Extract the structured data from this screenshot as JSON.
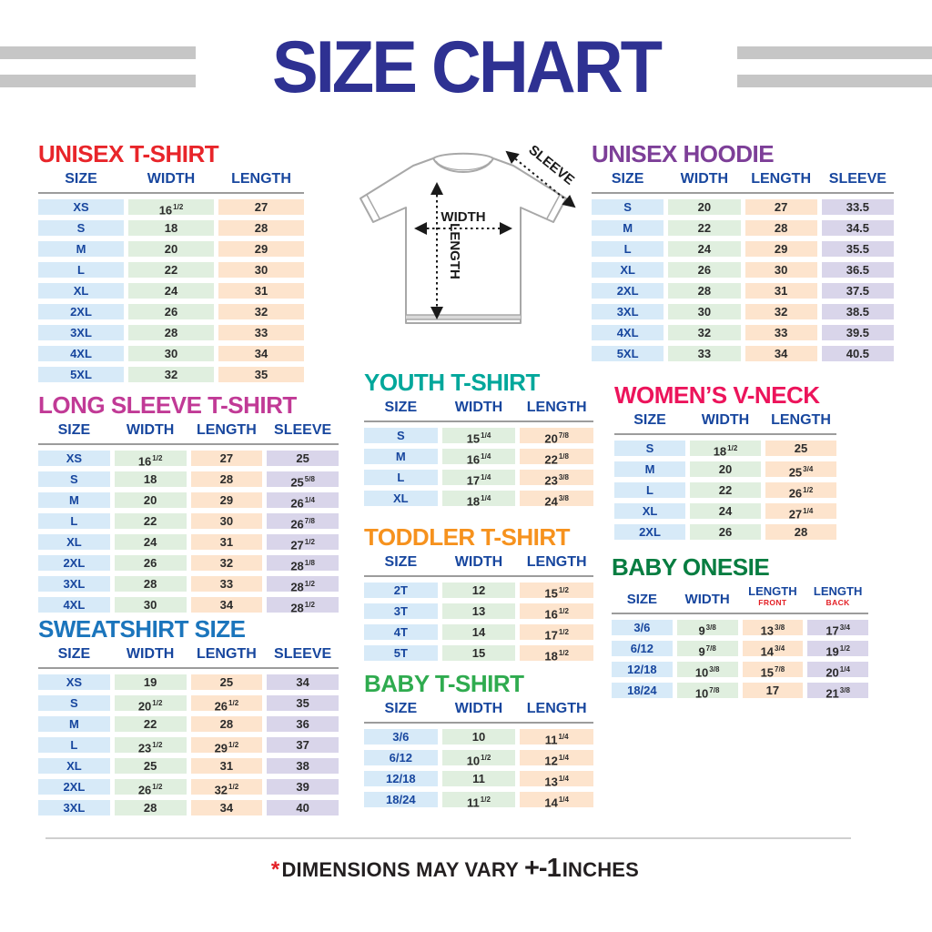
{
  "page": {
    "title": "SIZE CHART",
    "footer": {
      "asterisk": "*",
      "text": "DIMENSIONS MAY VARY",
      "tolerance": "+-1",
      "unit": "INCHES"
    }
  },
  "diagram": {
    "width_label": "WIDTH",
    "length_label": "LENGTH",
    "sleeve_label": "SLEEVE"
  },
  "colors": {
    "page_title": "#2e3192",
    "header_text": "#17469e",
    "size_tint": "#d7eaf8",
    "width_tint": "#e0efdf",
    "length_tint": "#fde4cd",
    "sleeve_tint": "#d9d5ea",
    "sub_header_red": "#e31e24"
  },
  "tables": {
    "unisex_tshirt": {
      "title": "UNISEX T-SHIRT",
      "title_color": "#e8252a",
      "columns": [
        {
          "label": "SIZE"
        },
        {
          "label": "WIDTH"
        },
        {
          "label": "LENGTH"
        }
      ],
      "tints": [
        "blue",
        "green",
        "peach"
      ],
      "rows": [
        [
          "XS",
          "16 1/2",
          "27"
        ],
        [
          "S",
          "18",
          "28"
        ],
        [
          "M",
          "20",
          "29"
        ],
        [
          "L",
          "22",
          "30"
        ],
        [
          "XL",
          "24",
          "31"
        ],
        [
          "2XL",
          "26",
          "32"
        ],
        [
          "3XL",
          "28",
          "33"
        ],
        [
          "4XL",
          "30",
          "34"
        ],
        [
          "5XL",
          "32",
          "35"
        ]
      ]
    },
    "unisex_hoodie": {
      "title": "UNISEX HOODIE",
      "title_color": "#7d3f98",
      "columns": [
        {
          "label": "SIZE"
        },
        {
          "label": "WIDTH"
        },
        {
          "label": "LENGTH"
        },
        {
          "label": "SLEEVE"
        }
      ],
      "tints": [
        "blue",
        "green",
        "peach",
        "lav"
      ],
      "rows": [
        [
          "S",
          "20",
          "27",
          "33.5"
        ],
        [
          "M",
          "22",
          "28",
          "34.5"
        ],
        [
          "L",
          "24",
          "29",
          "35.5"
        ],
        [
          "XL",
          "26",
          "30",
          "36.5"
        ],
        [
          "2XL",
          "28",
          "31",
          "37.5"
        ],
        [
          "3XL",
          "30",
          "32",
          "38.5"
        ],
        [
          "4XL",
          "32",
          "33",
          "39.5"
        ],
        [
          "5XL",
          "33",
          "34",
          "40.5"
        ]
      ]
    },
    "long_sleeve": {
      "title": "LONG SLEEVE T-SHIRT",
      "title_color": "#c13a96",
      "columns": [
        {
          "label": "SIZE"
        },
        {
          "label": "WIDTH"
        },
        {
          "label": "LENGTH"
        },
        {
          "label": "SLEEVE"
        }
      ],
      "tints": [
        "blue",
        "green",
        "peach",
        "lav"
      ],
      "rows": [
        [
          "XS",
          "16 1/2",
          "27",
          "25"
        ],
        [
          "S",
          "18",
          "28",
          "25 5/8"
        ],
        [
          "M",
          "20",
          "29",
          "26 1/4"
        ],
        [
          "L",
          "22",
          "30",
          "26 7/8"
        ],
        [
          "XL",
          "24",
          "31",
          "27 1/2"
        ],
        [
          "2XL",
          "26",
          "32",
          "28 1/8"
        ],
        [
          "3XL",
          "28",
          "33",
          "28 1/2"
        ],
        [
          "4XL",
          "30",
          "34",
          "28 1/2"
        ]
      ]
    },
    "youth": {
      "title": "YOUTH T-SHIRT",
      "title_color": "#00a79b",
      "columns": [
        {
          "label": "SIZE"
        },
        {
          "label": "WIDTH"
        },
        {
          "label": "LENGTH"
        }
      ],
      "tints": [
        "blue",
        "green",
        "peach"
      ],
      "rows": [
        [
          "S",
          "15 1/4",
          "20 7/8"
        ],
        [
          "M",
          "16 1/4",
          "22 1/8"
        ],
        [
          "L",
          "17 1/4",
          "23 3/8"
        ],
        [
          "XL",
          "18 1/4",
          "24 3/8"
        ]
      ]
    },
    "womens_vneck": {
      "title": "WOMEN’S V-NECK",
      "title_color": "#ec145b",
      "columns": [
        {
          "label": "SIZE"
        },
        {
          "label": "WIDTH"
        },
        {
          "label": "LENGTH"
        }
      ],
      "tints": [
        "blue",
        "green",
        "peach"
      ],
      "rows": [
        [
          "S",
          "18 1/2",
          "25"
        ],
        [
          "M",
          "20",
          "25 3/4"
        ],
        [
          "L",
          "22",
          "26 1/2"
        ],
        [
          "XL",
          "24",
          "27 1/4"
        ],
        [
          "2XL",
          "26",
          "28"
        ]
      ]
    },
    "toddler": {
      "title": "TODDLER T-SHIRT",
      "title_color": "#f6921e",
      "columns": [
        {
          "label": "SIZE"
        },
        {
          "label": "WIDTH"
        },
        {
          "label": "LENGTH"
        }
      ],
      "tints": [
        "blue",
        "green",
        "peach"
      ],
      "rows": [
        [
          "2T",
          "12",
          "15 1/2"
        ],
        [
          "3T",
          "13",
          "16 1/2"
        ],
        [
          "4T",
          "14",
          "17 1/2"
        ],
        [
          "5T",
          "15",
          "18 1/2"
        ]
      ]
    },
    "sweatshirt": {
      "title": "SWEATSHIRT SIZE",
      "title_color": "#1b75bc",
      "columns": [
        {
          "label": "SIZE"
        },
        {
          "label": "WIDTH"
        },
        {
          "label": "LENGTH"
        },
        {
          "label": "SLEEVE"
        }
      ],
      "tints": [
        "blue",
        "green",
        "peach",
        "lav"
      ],
      "rows": [
        [
          "XS",
          "19",
          "25",
          "34"
        ],
        [
          "S",
          "20 1/2",
          "26 1/2",
          "35"
        ],
        [
          "M",
          "22",
          "28",
          "36"
        ],
        [
          "L",
          "23 1/2",
          "29 1/2",
          "37"
        ],
        [
          "XL",
          "25",
          "31",
          "38"
        ],
        [
          "2XL",
          "26 1/2",
          "32 1/2",
          "39"
        ],
        [
          "3XL",
          "28",
          "34",
          "40"
        ]
      ]
    },
    "baby_tshirt": {
      "title": "BABY T-SHIRT",
      "title_color": "#2fab4f",
      "columns": [
        {
          "label": "SIZE"
        },
        {
          "label": "WIDTH"
        },
        {
          "label": "LENGTH"
        }
      ],
      "tints": [
        "blue",
        "green",
        "peach"
      ],
      "rows": [
        [
          "3/6",
          "10",
          "11 1/4"
        ],
        [
          "6/12",
          "10 1/2",
          "12 1/4"
        ],
        [
          "12/18",
          "11",
          "13 1/4"
        ],
        [
          "18/24",
          "11 1/2",
          "14 1/4"
        ]
      ]
    },
    "baby_onesie": {
      "title": "BABY ONESIE",
      "title_color": "#077d41",
      "columns": [
        {
          "label": "SIZE"
        },
        {
          "label": "WIDTH"
        },
        {
          "label": "LENGTH",
          "sub": "FRONT"
        },
        {
          "label": "LENGTH",
          "sub": "BACK"
        }
      ],
      "tints": [
        "blue",
        "green",
        "peach",
        "lav"
      ],
      "rows": [
        [
          "3/6",
          "9 3/8",
          "13 3/8",
          "17 3/4"
        ],
        [
          "6/12",
          "9 7/8",
          "14 3/4",
          "19 1/2"
        ],
        [
          "12/18",
          "10 3/8",
          "15 7/8",
          "20 1/4"
        ],
        [
          "18/24",
          "10 7/8",
          "17",
          "21 3/8"
        ]
      ]
    }
  }
}
